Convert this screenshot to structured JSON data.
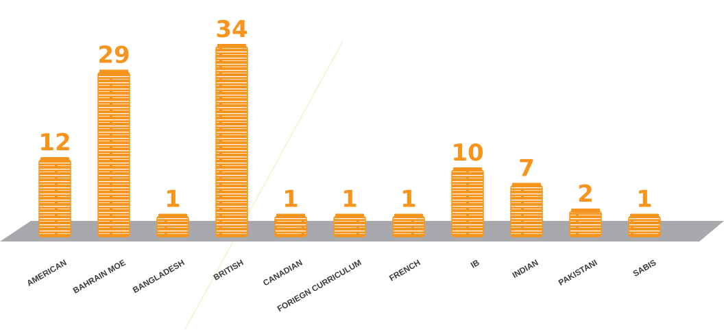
{
  "chart_data": {
    "type": "book-stack",
    "categories": [
      "AMERICAN",
      "BAHRAIN MOE",
      "BANGLADESH",
      "BRITISH",
      "CANADIAN",
      "FORIEGN CURRICULUM",
      "FRENCH",
      "IB",
      "INDIAN",
      "PAKISTANI",
      "SABIS"
    ],
    "values": [
      12,
      29,
      1,
      34,
      1,
      1,
      1,
      10,
      7,
      2,
      1
    ],
    "color": "#f7941d"
  }
}
